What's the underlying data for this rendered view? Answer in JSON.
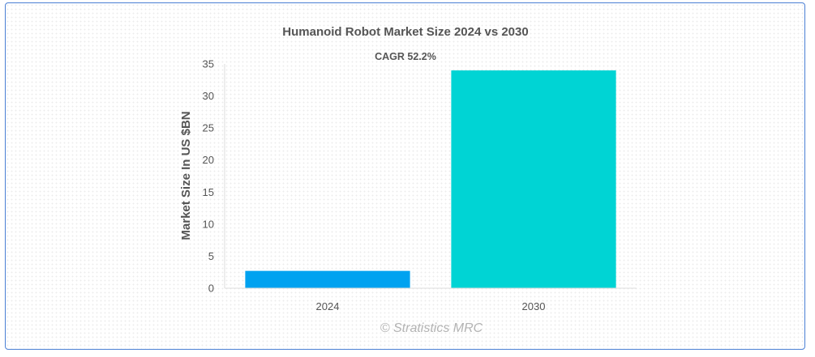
{
  "chart_data": {
    "type": "bar",
    "title": "Humanoid Robot Market Size 2024 vs 2030",
    "annotation": "CAGR 52.2%",
    "xlabel": "",
    "ylabel": "Market Size In US $BN",
    "categories": [
      "2024",
      "2030"
    ],
    "values": [
      2.7,
      34.0
    ],
    "colors": [
      "#00a2f0",
      "#00d4d4"
    ],
    "ylim": [
      0,
      35
    ],
    "yticks": [
      0,
      5,
      10,
      15,
      20,
      25,
      30,
      35
    ],
    "grid": false,
    "legend": "none"
  },
  "watermark": "© Stratistics MRC"
}
